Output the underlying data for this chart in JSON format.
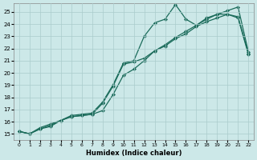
{
  "xlabel": "Humidex (Indice chaleur)",
  "bg_color": "#cce8e8",
  "grid_color": "#aacccc",
  "line_color": "#1a6b5a",
  "xlim": [
    -0.5,
    22.5
  ],
  "ylim": [
    14.5,
    25.7
  ],
  "xticks": [
    0,
    1,
    2,
    3,
    4,
    5,
    6,
    7,
    8,
    9,
    10,
    11,
    12,
    13,
    14,
    15,
    16,
    17,
    18,
    19,
    20,
    21,
    22
  ],
  "yticks": [
    15,
    16,
    17,
    18,
    19,
    20,
    21,
    22,
    23,
    24,
    25
  ],
  "line1_x": [
    0,
    1,
    2,
    3,
    4,
    5,
    6,
    7,
    8,
    9,
    10,
    11,
    12,
    13,
    14,
    15,
    16,
    17,
    18,
    19,
    20,
    21,
    22
  ],
  "line1_y": [
    15.2,
    15.0,
    15.4,
    15.6,
    16.1,
    16.5,
    16.6,
    16.7,
    17.6,
    19.0,
    20.8,
    21.0,
    23.0,
    24.1,
    24.4,
    25.6,
    24.4,
    23.9,
    24.5,
    24.8,
    24.8,
    24.5,
    21.5
  ],
  "line2_x": [
    0,
    1,
    2,
    3,
    4,
    5,
    6,
    7,
    8,
    9,
    10,
    11,
    12,
    13,
    14,
    15,
    16,
    17,
    18,
    19,
    20,
    21,
    22
  ],
  "line2_y": [
    15.2,
    15.0,
    15.4,
    15.7,
    16.1,
    16.4,
    16.5,
    16.6,
    17.5,
    18.9,
    20.7,
    20.9,
    21.2,
    21.8,
    22.2,
    22.8,
    23.2,
    23.8,
    24.2,
    24.5,
    24.8,
    24.6,
    21.6
  ],
  "line3_x": [
    0,
    1,
    2,
    3,
    4,
    5,
    6,
    7,
    8,
    9,
    10,
    11,
    12,
    13,
    14,
    15,
    16,
    17,
    18,
    19,
    20,
    21,
    22
  ],
  "line3_y": [
    15.2,
    15.0,
    15.5,
    15.8,
    16.1,
    16.4,
    16.5,
    16.6,
    16.9,
    18.2,
    19.8,
    20.3,
    21.0,
    21.8,
    22.3,
    22.9,
    23.4,
    23.9,
    24.4,
    24.8,
    25.1,
    25.4,
    21.7
  ]
}
